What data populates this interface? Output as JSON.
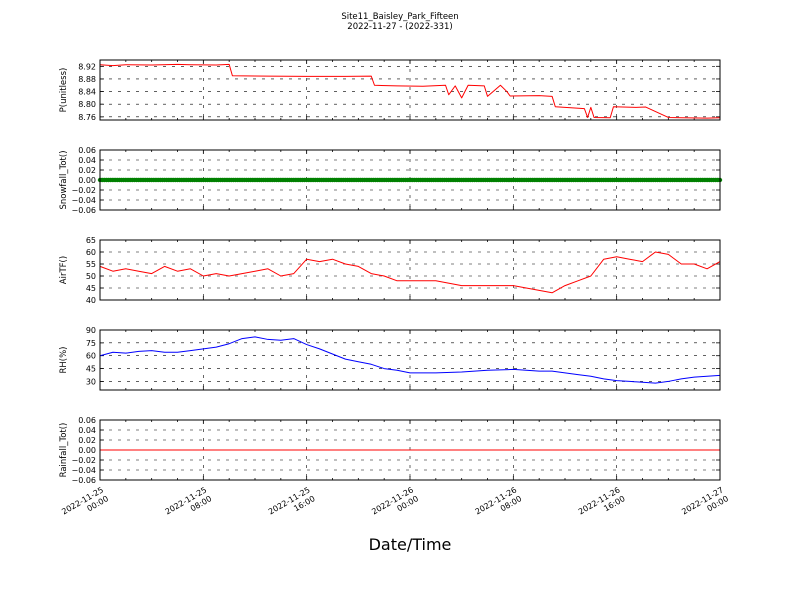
{
  "header": {
    "title": "Site11_Baisley_Park_Fifteen",
    "subtitle": "2022-11-27 - (2022-331)"
  },
  "xlabel": "Date/Time",
  "colors": {
    "pressure": "#ff0000",
    "snowfall": "#008000",
    "airtemp": "#ff0000",
    "rh": "#0000ff",
    "rainfall": "#ff0000"
  },
  "chart_data": [
    {
      "type": "line",
      "ylabel": "P(unitless)",
      "xlim": [
        "2022-11-25 00:00",
        "2022-11-27 00:00"
      ],
      "ylim": [
        8.75,
        8.94
      ],
      "yticks": [
        "8.76",
        "8.80",
        "8.84",
        "8.88",
        "8.92"
      ],
      "xticks": [
        "2022-11-25\n00:00",
        "2022-11-25\n08:00",
        "2022-11-25\n16:00",
        "2022-11-26\n00:00",
        "2022-11-26\n08:00",
        "2022-11-26\n16:00",
        "2022-11-27\n00:00"
      ],
      "grid": true,
      "series": [
        {
          "color": "#ff0000",
          "x": [
            "2022-11-25 00:00",
            "2022-11-25 01:00",
            "2022-11-25 02:00",
            "2022-11-25 04:00",
            "2022-11-25 06:00",
            "2022-11-25 07:00",
            "2022-11-25 09:00",
            "2022-11-25 10:00",
            "2022-11-25 10:15",
            "2022-11-25 13:00",
            "2022-11-25 16:00",
            "2022-11-25 19:00",
            "2022-11-25 21:00",
            "2022-11-25 21:15",
            "2022-11-25 23:00",
            "2022-11-26 01:00",
            "2022-11-26 02:45",
            "2022-11-26 03:00",
            "2022-11-26 03:30",
            "2022-11-26 04:00",
            "2022-11-26 04:30",
            "2022-11-26 05:45",
            "2022-11-26 06:00",
            "2022-11-26 07:00",
            "2022-11-26 07:30",
            "2022-11-26 07:45",
            "2022-11-26 10:00",
            "2022-11-26 11:00",
            "2022-11-26 11:15",
            "2022-11-26 12:00",
            "2022-11-26 13:30",
            "2022-11-26 13:45",
            "2022-11-26 14:00",
            "2022-11-26 14:15",
            "2022-11-26 15:30",
            "2022-11-26 15:45",
            "2022-11-26 17:30",
            "2022-11-26 18:15",
            "2022-11-26 20:00",
            "2022-11-26 21:00",
            "2022-11-26 23:00",
            "2022-11-27 00:00"
          ],
          "y": [
            8.925,
            8.922,
            8.925,
            8.924,
            8.926,
            8.925,
            8.924,
            8.926,
            8.89,
            8.889,
            8.888,
            8.888,
            8.889,
            8.86,
            8.858,
            8.857,
            8.86,
            8.83,
            8.858,
            8.82,
            8.86,
            8.858,
            8.825,
            8.86,
            8.84,
            8.826,
            8.827,
            8.825,
            8.792,
            8.79,
            8.786,
            8.758,
            8.79,
            8.758,
            8.757,
            8.792,
            8.79,
            8.791,
            8.758,
            8.757,
            8.756,
            8.757
          ]
        }
      ]
    },
    {
      "type": "scatter",
      "ylabel": "Snowfall_Tot()",
      "xlim": [
        "2022-11-25 00:00",
        "2022-11-27 00:00"
      ],
      "ylim": [
        -0.06,
        0.06
      ],
      "yticks": [
        "−0.06",
        "−0.04",
        "−0.02",
        "0.00",
        "0.02",
        "0.04",
        "0.06"
      ],
      "grid": true,
      "series": [
        {
          "color": "#008000",
          "x_start": "2022-11-25 00:00",
          "x_end": "2022-11-27 00:00",
          "interval_minutes": 10,
          "y_constant": 0.0
        }
      ]
    },
    {
      "type": "line",
      "ylabel": "AirTF()",
      "xlim": [
        "2022-11-25 00:00",
        "2022-11-27 00:00"
      ],
      "ylim": [
        40,
        65
      ],
      "yticks": [
        "40",
        "45",
        "50",
        "55",
        "60",
        "65"
      ],
      "grid": true,
      "series": [
        {
          "color": "#ff0000",
          "x": [
            "2022-11-25 00:00",
            "2022-11-25 01:00",
            "2022-11-25 02:00",
            "2022-11-25 03:00",
            "2022-11-25 04:00",
            "2022-11-25 05:00",
            "2022-11-25 06:00",
            "2022-11-25 07:00",
            "2022-11-25 08:00",
            "2022-11-25 09:00",
            "2022-11-25 10:00",
            "2022-11-25 11:00",
            "2022-11-25 12:00",
            "2022-11-25 13:00",
            "2022-11-25 14:00",
            "2022-11-25 15:00",
            "2022-11-25 16:00",
            "2022-11-25 17:00",
            "2022-11-25 18:00",
            "2022-11-25 19:00",
            "2022-11-25 20:00",
            "2022-11-25 21:00",
            "2022-11-25 22:00",
            "2022-11-25 23:00",
            "2022-11-26 00:00",
            "2022-11-26 02:00",
            "2022-11-26 04:00",
            "2022-11-26 06:00",
            "2022-11-26 08:00",
            "2022-11-26 09:00",
            "2022-11-26 10:00",
            "2022-11-26 11:00",
            "2022-11-26 12:00",
            "2022-11-26 13:00",
            "2022-11-26 14:00",
            "2022-11-26 15:00",
            "2022-11-26 16:00",
            "2022-11-26 17:00",
            "2022-11-26 18:00",
            "2022-11-26 19:00",
            "2022-11-26 20:00",
            "2022-11-26 21:00",
            "2022-11-26 22:00",
            "2022-11-26 23:00",
            "2022-11-27 00:00"
          ],
          "y": [
            54,
            52,
            53,
            52,
            51,
            54,
            52,
            53,
            50,
            51,
            50,
            51,
            52,
            53,
            50,
            51,
            57,
            56,
            57,
            55,
            54,
            51,
            50,
            48,
            48,
            48,
            46,
            46,
            46,
            45,
            44,
            43,
            46,
            48,
            50,
            57,
            58,
            57,
            56,
            60,
            59,
            55,
            55,
            53,
            56
          ]
        }
      ]
    },
    {
      "type": "line",
      "ylabel": "RH(%)",
      "xlim": [
        "2022-11-25 00:00",
        "2022-11-27 00:00"
      ],
      "ylim": [
        20,
        90
      ],
      "yticks": [
        "30",
        "45",
        "60",
        "75",
        "90"
      ],
      "grid": true,
      "series": [
        {
          "color": "#0000ff",
          "x": [
            "2022-11-25 00:00",
            "2022-11-25 01:00",
            "2022-11-25 02:00",
            "2022-11-25 03:00",
            "2022-11-25 04:00",
            "2022-11-25 05:00",
            "2022-11-25 06:00",
            "2022-11-25 07:00",
            "2022-11-25 08:00",
            "2022-11-25 09:00",
            "2022-11-25 10:00",
            "2022-11-25 11:00",
            "2022-11-25 12:00",
            "2022-11-25 13:00",
            "2022-11-25 14:00",
            "2022-11-25 15:00",
            "2022-11-25 16:00",
            "2022-11-25 17:00",
            "2022-11-25 18:00",
            "2022-11-25 19:00",
            "2022-11-25 20:00",
            "2022-11-25 21:00",
            "2022-11-25 22:00",
            "2022-11-25 23:00",
            "2022-11-26 00:00",
            "2022-11-26 02:00",
            "2022-11-26 04:00",
            "2022-11-26 06:00",
            "2022-11-26 08:00",
            "2022-11-26 09:00",
            "2022-11-26 10:00",
            "2022-11-26 11:00",
            "2022-11-26 12:00",
            "2022-11-26 13:00",
            "2022-11-26 14:00",
            "2022-11-26 15:00",
            "2022-11-26 16:00",
            "2022-11-26 17:00",
            "2022-11-26 18:00",
            "2022-11-26 19:00",
            "2022-11-26 20:00",
            "2022-11-26 21:00",
            "2022-11-26 22:00",
            "2022-11-26 23:00",
            "2022-11-27 00:00"
          ],
          "y": [
            60,
            64,
            63,
            65,
            66,
            64,
            64,
            66,
            68,
            70,
            74,
            80,
            82,
            79,
            78,
            80,
            73,
            68,
            62,
            56,
            53,
            50,
            45,
            43,
            40,
            40,
            41,
            43,
            44,
            43,
            42,
            42,
            40,
            38,
            36,
            33,
            31,
            30,
            29,
            28,
            30,
            33,
            35,
            36,
            37
          ]
        }
      ]
    },
    {
      "type": "line",
      "ylabel": "Rainfall_Tot()",
      "xlim": [
        "2022-11-25 00:00",
        "2022-11-27 00:00"
      ],
      "ylim": [
        -0.06,
        0.06
      ],
      "yticks": [
        "−0.06",
        "−0.04",
        "−0.02",
        "0.00",
        "0.02",
        "0.04",
        "0.06"
      ],
      "grid": true,
      "series": [
        {
          "color": "#ff0000",
          "x": [
            "2022-11-25 00:00",
            "2022-11-27 00:00"
          ],
          "y": [
            0.0,
            0.0
          ]
        }
      ]
    }
  ]
}
